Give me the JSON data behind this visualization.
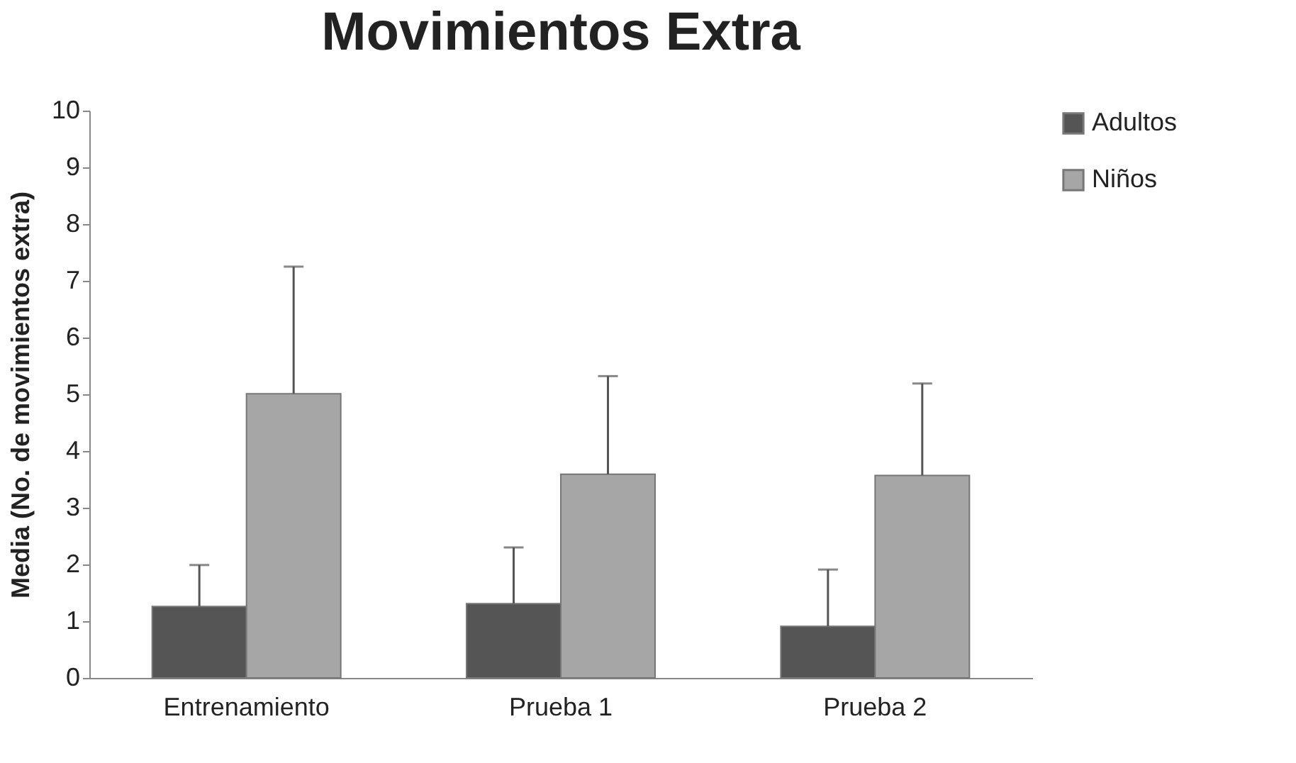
{
  "chart_data": {
    "type": "bar",
    "title": "Movimientos Extra",
    "ylabel": "Media (No. de movimientos extra)",
    "categories": [
      "Entrenamiento",
      "Prueba 1",
      "Prueba 2"
    ],
    "series": [
      {
        "name": "Adultos",
        "color": "#555555",
        "values": [
          1.26,
          1.31,
          0.91
        ],
        "errors": [
          [
            1.26,
            1.99
          ],
          [
            1.31,
            2.3
          ],
          [
            0.91,
            1.91
          ]
        ]
      },
      {
        "name": "Niños",
        "color": "#a6a6a6",
        "values": [
          5.01,
          3.59,
          3.57
        ],
        "errors": [
          [
            5.01,
            7.25
          ],
          [
            3.59,
            5.32
          ],
          [
            3.57,
            5.19
          ]
        ]
      }
    ],
    "ylim": [
      0,
      10
    ],
    "yticks": [
      0,
      1,
      2,
      3,
      4,
      5,
      6,
      7,
      8,
      9,
      10
    ],
    "grid": false,
    "legend": "right"
  }
}
